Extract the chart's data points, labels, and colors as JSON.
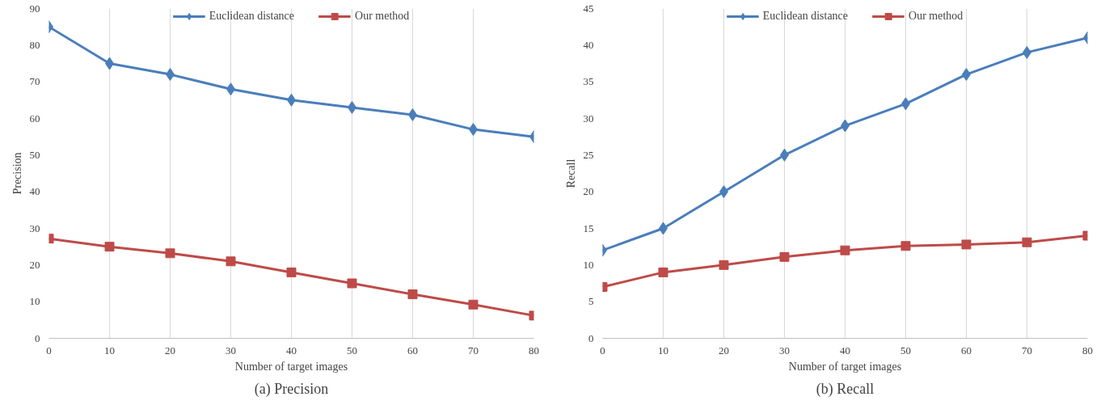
{
  "chart_data": [
    {
      "type": "line",
      "title": "(a) Precision",
      "xlabel": "Number of target images",
      "ylabel": "Precision",
      "x": [
        0,
        10,
        20,
        30,
        40,
        50,
        60,
        70,
        80
      ],
      "xlim": [
        0,
        80
      ],
      "xticks": [
        0,
        10,
        20,
        30,
        40,
        50,
        60,
        70,
        80
      ],
      "ylim": [
        0,
        90
      ],
      "yticks": [
        0,
        10,
        20,
        30,
        40,
        50,
        60,
        70,
        80,
        90
      ],
      "grid": "x",
      "legend": "top",
      "series": [
        {
          "name": "Euclidean distance",
          "color": "#4a7ebb",
          "marker": "diamond",
          "values": [
            85,
            75,
            72,
            68,
            65,
            63,
            61,
            57,
            55
          ]
        },
        {
          "name": "Our method",
          "color": "#be4b48",
          "marker": "square",
          "values": [
            27.2,
            25,
            23.2,
            21,
            18,
            15,
            12,
            9.2,
            6.2
          ]
        }
      ]
    },
    {
      "type": "line",
      "title": "(b) Recall",
      "xlabel": "Number of target images",
      "ylabel": "Recall",
      "x": [
        0,
        10,
        20,
        30,
        40,
        50,
        60,
        70,
        80
      ],
      "xlim": [
        0,
        80
      ],
      "xticks": [
        0,
        10,
        20,
        30,
        40,
        50,
        60,
        70,
        80
      ],
      "ylim": [
        0,
        45
      ],
      "yticks": [
        0,
        5,
        10,
        15,
        20,
        25,
        30,
        35,
        40,
        45
      ],
      "grid": "x",
      "legend": "top",
      "series": [
        {
          "name": "Euclidean distance",
          "color": "#4a7ebb",
          "marker": "diamond",
          "values": [
            12,
            15,
            20,
            25,
            29,
            32,
            36,
            39,
            41
          ]
        },
        {
          "name": "Our method",
          "color": "#be4b48",
          "marker": "square",
          "values": [
            7,
            9,
            10,
            11.1,
            12,
            12.6,
            12.8,
            13.1,
            14
          ]
        }
      ]
    }
  ]
}
